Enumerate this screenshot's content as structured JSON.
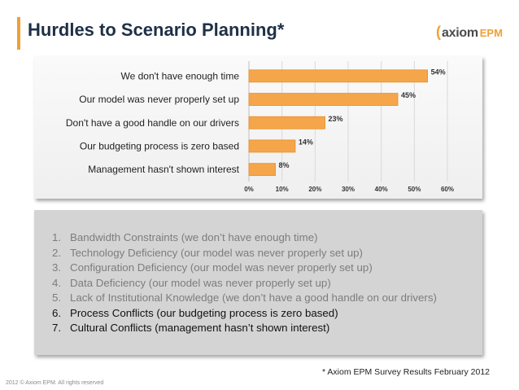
{
  "slide": {
    "title": "Hurdles to Scenario Planning*",
    "logo": {
      "mark": "(",
      "word": "axiom",
      "suffix": "EPM"
    },
    "footnote": "* Axiom EPM Survey Results February 2012",
    "copyright": "2012 © Axiom EPM. All rights reserved"
  },
  "chart_data": {
    "type": "bar",
    "orientation": "horizontal",
    "categories": [
      "We don't have enough time",
      "Our model was never properly set up",
      "Don't have a good handle on our drivers",
      "Our budgeting process is zero based",
      "Management hasn't shown interest"
    ],
    "values": [
      54,
      45,
      23,
      14,
      8
    ],
    "value_labels": [
      "54%",
      "45%",
      "23%",
      "14%",
      "8%"
    ],
    "xlim": [
      0,
      60
    ],
    "xticks": [
      0,
      10,
      20,
      30,
      40,
      50,
      60
    ],
    "xtick_labels": [
      "0%",
      "10%",
      "20%",
      "30%",
      "40%",
      "50%",
      "60%"
    ],
    "grid": true,
    "bar_color": "#f5a64a",
    "bar_edge_color": "#e88d2a"
  },
  "list": {
    "items": [
      {
        "num": "1.",
        "text": "Bandwidth Constraints (we don’t have enough time)",
        "style": "muted"
      },
      {
        "num": "2.",
        "text": "Technology Deficiency (our model was never properly set up)",
        "style": "muted"
      },
      {
        "num": "3.",
        "text": "Configuration Deficiency (our model was never properly set up)",
        "style": "muted"
      },
      {
        "num": "4.",
        "text": "Data Deficiency (our model was never properly set up)",
        "style": "muted"
      },
      {
        "num": "5.",
        "text": "Lack of Institutional Knowledge (we don’t have a good handle on our drivers)",
        "style": "muted"
      },
      {
        "num": "6.",
        "text": "Process Conflicts (our budgeting process is zero based)",
        "style": "dark"
      },
      {
        "num": "7.",
        "text": "Cultural Conflicts (management hasn’t shown interest)",
        "style": "dark"
      }
    ]
  }
}
